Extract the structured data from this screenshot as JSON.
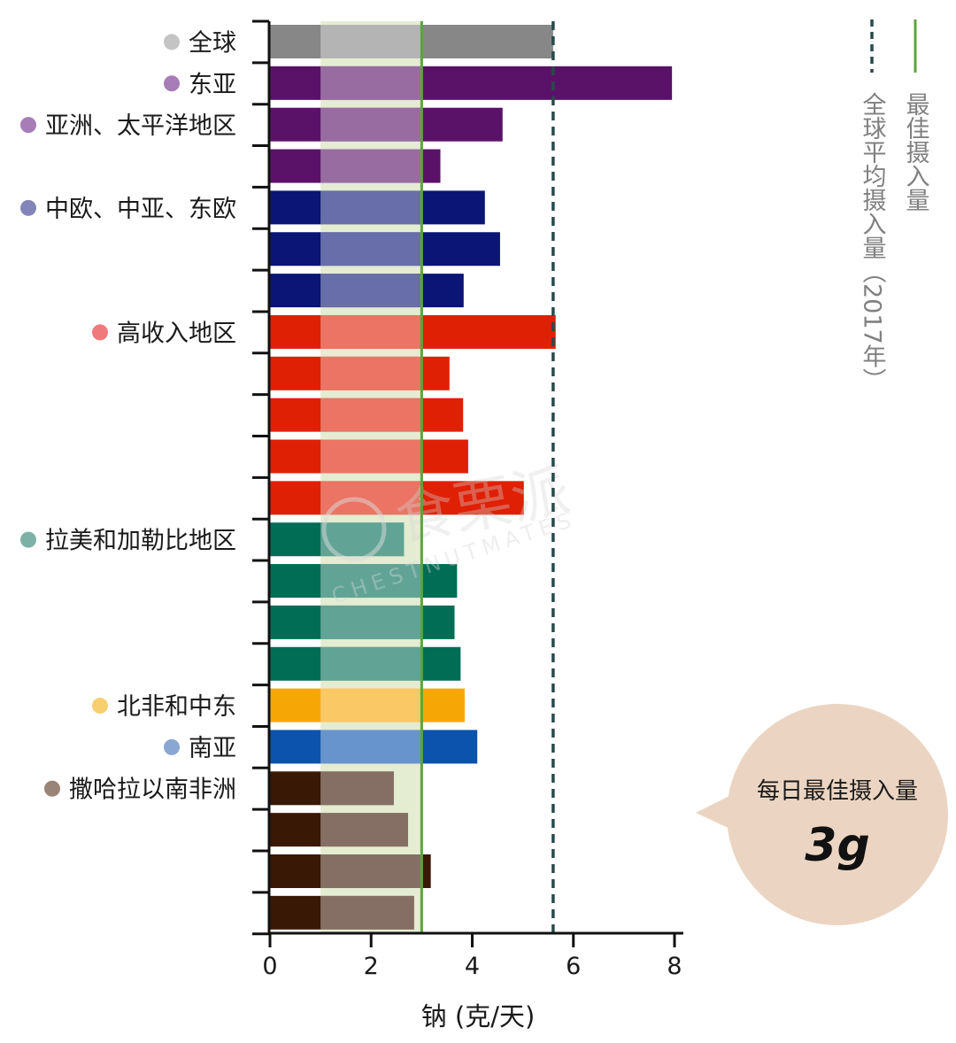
{
  "chart_data": {
    "type": "bar",
    "orientation": "horizontal",
    "xlabel": "钠 (克/天)",
    "xlim": [
      0,
      8
    ],
    "xticks": [
      0,
      2,
      4,
      6,
      8
    ],
    "bars": [
      {
        "value": 5.6,
        "color": "#878787"
      },
      {
        "value": 7.95,
        "color": "#5a1268"
      },
      {
        "value": 4.6,
        "color": "#5a1268"
      },
      {
        "value": 3.37,
        "color": "#5a1268"
      },
      {
        "value": 4.25,
        "color": "#0a1575"
      },
      {
        "value": 4.55,
        "color": "#0a1575"
      },
      {
        "value": 3.83,
        "color": "#0a1575"
      },
      {
        "value": 5.65,
        "color": "#df2005"
      },
      {
        "value": 3.55,
        "color": "#df2005"
      },
      {
        "value": 3.82,
        "color": "#df2005"
      },
      {
        "value": 3.92,
        "color": "#df2005"
      },
      {
        "value": 5.02,
        "color": "#df2005"
      },
      {
        "value": 2.65,
        "color": "#016d55"
      },
      {
        "value": 3.7,
        "color": "#016d55"
      },
      {
        "value": 3.65,
        "color": "#016d55"
      },
      {
        "value": 3.77,
        "color": "#016d55"
      },
      {
        "value": 3.85,
        "color": "#f7a705"
      },
      {
        "value": 4.1,
        "color": "#0b53ad"
      },
      {
        "value": 2.45,
        "color": "#3a1806"
      },
      {
        "value": 2.73,
        "color": "#3a1806"
      },
      {
        "value": 3.18,
        "color": "#3a1806"
      },
      {
        "value": 2.85,
        "color": "#3a1806"
      }
    ],
    "region_labels": [
      {
        "label": "全球",
        "bar_index": 0,
        "dot_color": "#c4c4c4"
      },
      {
        "label": "东亚",
        "bar_index": 1,
        "dot_color": "#a77cb7"
      },
      {
        "label": "亚洲、太平洋地区",
        "bar_index": 2,
        "dot_color": "#a77cb7"
      },
      {
        "label": "中欧、中亚、东欧",
        "bar_index": 4,
        "dot_color": "#8385ba"
      },
      {
        "label": "高收入地区",
        "bar_index": 7,
        "dot_color": "#ee7a7c"
      },
      {
        "label": "拉美和加勒比地区",
        "bar_index": 12,
        "dot_color": "#7db1a6"
      },
      {
        "label": "北非和中东",
        "bar_index": 16,
        "dot_color": "#f7cf71"
      },
      {
        "label": "南亚",
        "bar_index": 17,
        "dot_color": "#8aa7d3"
      },
      {
        "label": "撒哈拉以南非洲",
        "bar_index": 18,
        "dot_color": "#9a8477"
      }
    ],
    "reference_lines": [
      {
        "name": "最佳摄入量",
        "value": 3.0,
        "style": "solid",
        "color": "#59a63a"
      },
      {
        "name": "全球平均摄入量（2017年）",
        "value": 5.6,
        "style": "dashed",
        "color": "#2a4a4a"
      }
    ],
    "optimal_band": {
      "from": 1.0,
      "to": 3.0,
      "color": "#e4ecd2"
    },
    "callout": {
      "text": "每日最佳摄入量",
      "value": "3g",
      "color": "#ebd5c2"
    },
    "watermark": {
      "cn": "食栗派",
      "en": "CHESTNUTMATES"
    }
  }
}
